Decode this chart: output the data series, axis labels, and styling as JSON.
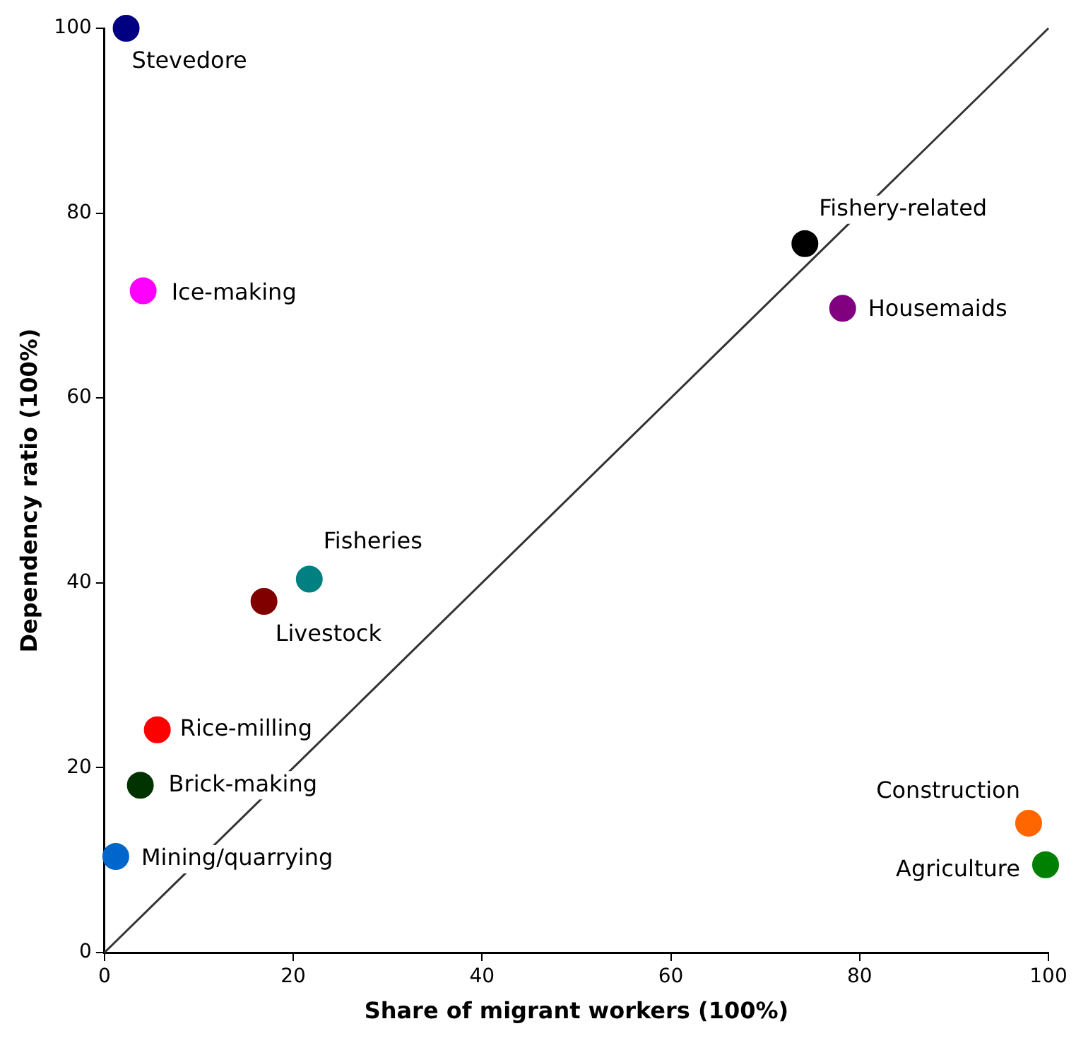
{
  "chart_data": {
    "type": "scatter",
    "xlabel": "Share of migrant workers (100%)",
    "ylabel": "Dependency ratio (100%)",
    "xlim": [
      0,
      100
    ],
    "xticks": [
      0,
      20,
      40,
      60,
      80,
      100
    ],
    "ylim": [
      0,
      100
    ],
    "yticks": [
      0,
      20,
      40,
      60,
      80,
      100
    ],
    "grid": false,
    "legend": false,
    "marker": "circle",
    "series": [
      {
        "name": "Stevedore",
        "color": "#000080",
        "x": [
          2.3
        ],
        "values": [
          100
        ]
      },
      {
        "name": "Ice-making",
        "color": "#ff00ff",
        "x": [
          4.1
        ],
        "values": [
          71.6
        ]
      },
      {
        "name": "Fishery-related",
        "color": "#000000",
        "x": [
          74.2
        ],
        "values": [
          76.7
        ]
      },
      {
        "name": "Housemaids",
        "color": "#800080",
        "x": [
          78.2
        ],
        "values": [
          69.7
        ]
      },
      {
        "name": "Fisheries",
        "color": "#008080",
        "x": [
          21.7
        ],
        "values": [
          40.4
        ]
      },
      {
        "name": "Livestock",
        "color": "#800000",
        "x": [
          16.9
        ],
        "values": [
          38.0
        ]
      },
      {
        "name": "Rice-milling",
        "color": "#ff0000",
        "x": [
          5.6
        ],
        "values": [
          24.1
        ]
      },
      {
        "name": "Brick-making",
        "color": "#003300",
        "x": [
          3.8
        ],
        "values": [
          18.1
        ]
      },
      {
        "name": "Mining/quarrying",
        "color": "#0066cc",
        "x": [
          1.2
        ],
        "values": [
          10.4
        ]
      },
      {
        "name": "Construction",
        "color": "#ff6600",
        "x": [
          97.9
        ],
        "values": [
          14.0
        ]
      },
      {
        "name": "Agriculture",
        "color": "#008000",
        "x": [
          99.7
        ],
        "values": [
          9.5
        ]
      },
      {
        "type": "line",
        "color": "#333333",
        "x": [
          0,
          100
        ],
        "values": [
          0,
          100
        ],
        "marker": "none"
      }
    ]
  }
}
